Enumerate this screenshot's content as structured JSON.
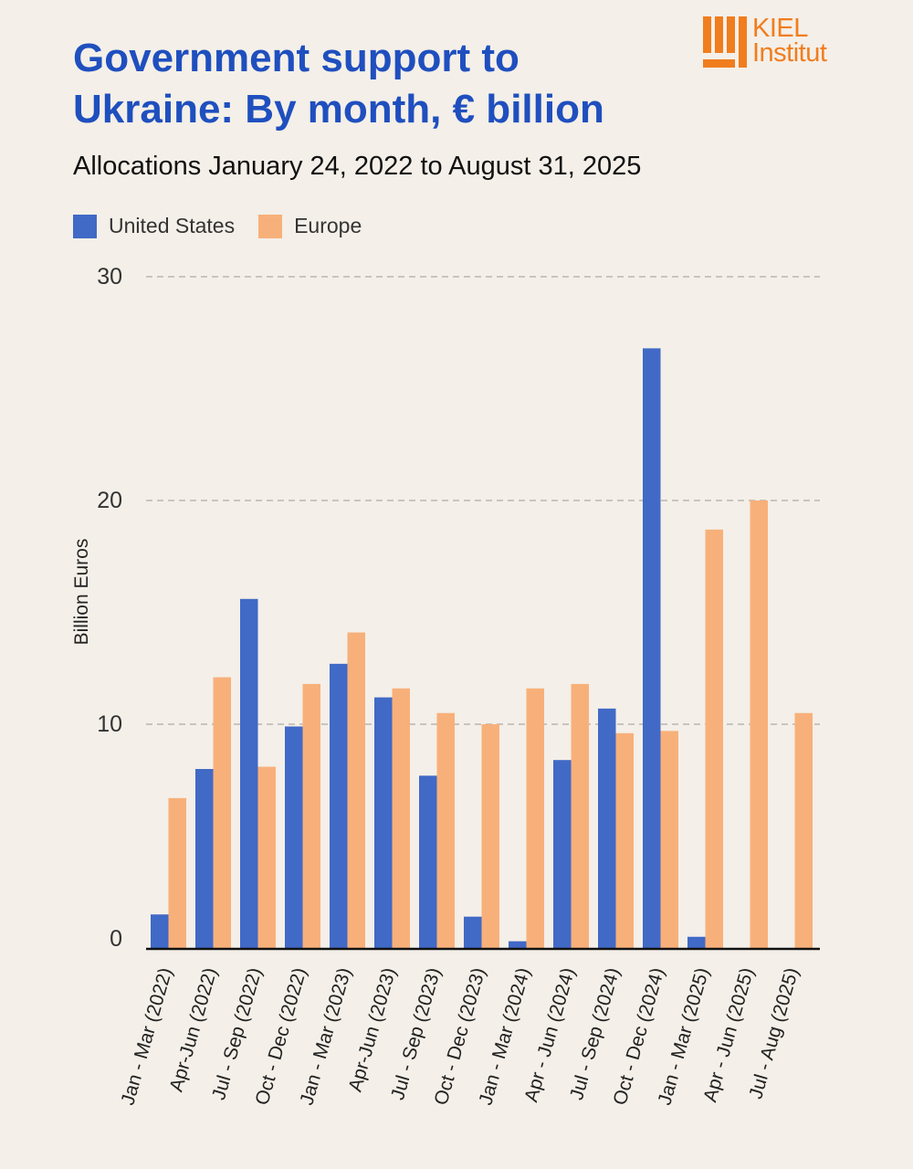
{
  "header": {
    "title_line1": "Government support to",
    "title_line2": "Ukraine: By month, € billion",
    "subtitle": "Allocations January 24, 2022 to August 31, 2025",
    "logo_line1": "KIEL",
    "logo_line2": "Institut",
    "logo_icon": "kiel-bars-icon"
  },
  "colors": {
    "background": "#f4efe8",
    "title": "#1f4fbf",
    "us": "#4169c6",
    "europe": "#f8b07a",
    "logo": "#f07d1e"
  },
  "chart_data": {
    "type": "bar",
    "title": "Government support to Ukraine: By month, € billion",
    "subtitle": "Allocations January 24, 2022 to August 31, 2025",
    "xlabel": "",
    "ylabel": "Billion Euros",
    "ylim": [
      0,
      30
    ],
    "yticks": [
      0,
      10,
      20,
      30
    ],
    "grid": true,
    "legend_position": "top-left",
    "categories": [
      "Jan - Mar (2022)",
      "Apr-Jun (2022)",
      "Jul - Sep (2022)",
      "Oct - Dec (2022)",
      "Jan - Mar (2023)",
      "Apr-Jun (2023)",
      "Jul - Sep (2023)",
      "Oct - Dec (2023)",
      "Jan - Mar (2024)",
      "Apr - Jun (2024)",
      "Jul - Sep (2024)",
      "Oct - Dec (2024)",
      "Jan - Mar (2025)",
      "Apr - Jun (2025)",
      "Jul - Aug (2025)"
    ],
    "series": [
      {
        "name": "United States",
        "color": "#4169c6",
        "values": [
          1.5,
          8.0,
          15.6,
          9.9,
          12.7,
          11.2,
          7.7,
          1.4,
          0.3,
          8.4,
          10.7,
          26.8,
          0.5,
          0,
          0
        ]
      },
      {
        "name": "Europe",
        "color": "#f8b07a",
        "values": [
          6.7,
          12.1,
          8.1,
          11.8,
          14.1,
          11.6,
          10.5,
          10.0,
          11.6,
          11.8,
          9.6,
          9.7,
          18.7,
          20.0,
          10.5
        ]
      }
    ]
  }
}
